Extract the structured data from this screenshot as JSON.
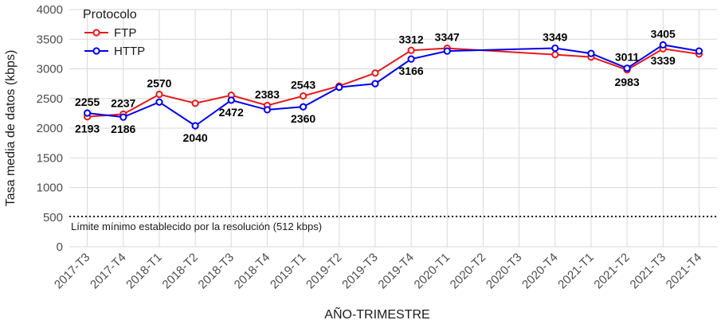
{
  "chart_data": {
    "type": "line",
    "xlabel": "AÑO-TRIMESTRE",
    "ylabel": "Tasa media de datos (kbps)",
    "ylim": [
      0,
      4000
    ],
    "yticks": [
      0,
      500,
      1000,
      1500,
      2000,
      2500,
      3000,
      3500,
      4000
    ],
    "grid": true,
    "legend": {
      "title": "Protocolo",
      "placement": "top-left"
    },
    "categories": [
      "2017-T3",
      "2017-T4",
      "2018-T1",
      "2018-T2",
      "2018-T3",
      "2018-T4",
      "2019-T1",
      "2019-T2",
      "2019-T3",
      "2019-T4",
      "2020-T1",
      "2020-T2",
      "2020-T3",
      "2020-T4",
      "2021-T1",
      "2021-T2",
      "2021-T3",
      "2021-T4"
    ],
    "series": [
      {
        "name": "FTP",
        "color": "#e41a1c",
        "points": [
          {
            "x": "2017-T3",
            "y": 2193
          },
          {
            "x": "2017-T4",
            "y": 2237
          },
          {
            "x": "2018-T1",
            "y": 2570
          },
          {
            "x": "2018-T2",
            "y": 2420
          },
          {
            "x": "2018-T3",
            "y": 2555
          },
          {
            "x": "2018-T4",
            "y": 2383
          },
          {
            "x": "2019-T1",
            "y": 2543
          },
          {
            "x": "2019-T2",
            "y": 2710
          },
          {
            "x": "2019-T3",
            "y": 2930
          },
          {
            "x": "2019-T4",
            "y": 3312
          },
          {
            "x": "2020-T1",
            "y": 3347
          },
          {
            "x": "2020-T4",
            "y": 3240
          },
          {
            "x": "2021-T1",
            "y": 3200
          },
          {
            "x": "2021-T2",
            "y": 2983
          },
          {
            "x": "2021-T3",
            "y": 3339
          },
          {
            "x": "2021-T4",
            "y": 3250
          }
        ]
      },
      {
        "name": "HTTP",
        "color": "#0000ee",
        "points": [
          {
            "x": "2017-T3",
            "y": 2255
          },
          {
            "x": "2017-T4",
            "y": 2186
          },
          {
            "x": "2018-T1",
            "y": 2440
          },
          {
            "x": "2018-T2",
            "y": 2040
          },
          {
            "x": "2018-T3",
            "y": 2472
          },
          {
            "x": "2018-T4",
            "y": 2310
          },
          {
            "x": "2019-T1",
            "y": 2360
          },
          {
            "x": "2019-T2",
            "y": 2690
          },
          {
            "x": "2019-T3",
            "y": 2750
          },
          {
            "x": "2019-T4",
            "y": 3166
          },
          {
            "x": "2020-T1",
            "y": 3300
          },
          {
            "x": "2020-T4",
            "y": 3349
          },
          {
            "x": "2021-T1",
            "y": 3260
          },
          {
            "x": "2021-T2",
            "y": 3011
          },
          {
            "x": "2021-T3",
            "y": 3405
          },
          {
            "x": "2021-T4",
            "y": 3300
          }
        ]
      }
    ],
    "data_labels": [
      {
        "series": "HTTP",
        "x": "2017-T3",
        "text": "2255",
        "pos": "above"
      },
      {
        "series": "FTP",
        "x": "2017-T3",
        "text": "2193",
        "pos": "below"
      },
      {
        "series": "FTP",
        "x": "2017-T4",
        "text": "2237",
        "pos": "above"
      },
      {
        "series": "HTTP",
        "x": "2017-T4",
        "text": "2186",
        "pos": "below"
      },
      {
        "series": "FTP",
        "x": "2018-T1",
        "text": "2570",
        "pos": "above"
      },
      {
        "series": "HTTP",
        "x": "2018-T2",
        "text": "2040",
        "pos": "below"
      },
      {
        "series": "HTTP",
        "x": "2018-T3",
        "text": "2472",
        "pos": "below"
      },
      {
        "series": "FTP",
        "x": "2018-T4",
        "text": "2383",
        "pos": "above"
      },
      {
        "series": "FTP",
        "x": "2019-T1",
        "text": "2543",
        "pos": "above"
      },
      {
        "series": "HTTP",
        "x": "2019-T1",
        "text": "2360",
        "pos": "below"
      },
      {
        "series": "FTP",
        "x": "2019-T4",
        "text": "3312",
        "pos": "above"
      },
      {
        "series": "HTTP",
        "x": "2019-T4",
        "text": "3166",
        "pos": "below"
      },
      {
        "series": "FTP",
        "x": "2020-T1",
        "text": "3347",
        "pos": "above"
      },
      {
        "series": "HTTP",
        "x": "2020-T4",
        "text": "3349",
        "pos": "above"
      },
      {
        "series": "HTTP",
        "x": "2021-T2",
        "text": "3011",
        "pos": "above"
      },
      {
        "series": "FTP",
        "x": "2021-T2",
        "text": "2983",
        "pos": "below"
      },
      {
        "series": "HTTP",
        "x": "2021-T3",
        "text": "3405",
        "pos": "above"
      },
      {
        "series": "FTP",
        "x": "2021-T3",
        "text": "3339",
        "pos": "below"
      }
    ],
    "reference_line": {
      "y": 512,
      "style": "dotted",
      "label": "Límite mínimo establecido por la resolución (512 kbps)"
    }
  }
}
